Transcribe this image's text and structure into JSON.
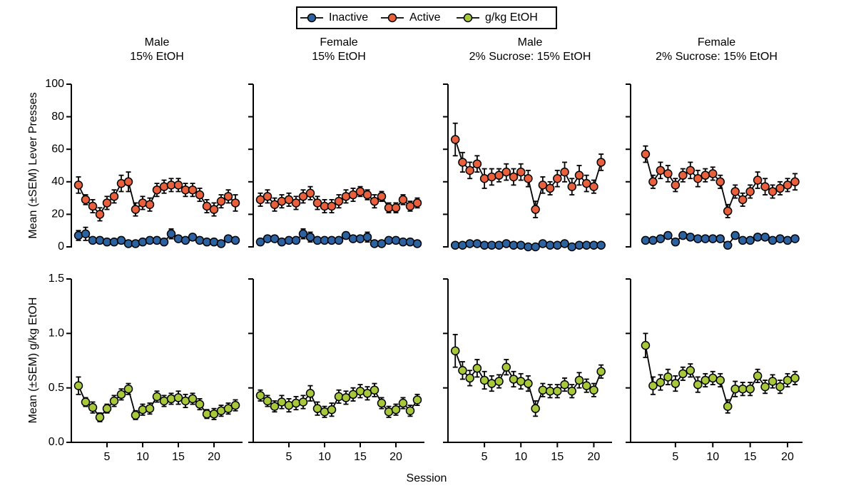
{
  "chart_data": [
    {
      "type": "line",
      "title": "Male",
      "subtitle": "15% EtOH",
      "ylabel": "Mean (±SEM) Lever Presses",
      "x": [
        1,
        2,
        3,
        4,
        5,
        6,
        7,
        8,
        9,
        10,
        11,
        12,
        13,
        14,
        15,
        16,
        17,
        18,
        19,
        20,
        21,
        22,
        23
      ],
      "xlim": [
        0,
        24
      ],
      "ylim": [
        0,
        100
      ],
      "yticks": [
        0,
        20,
        40,
        60,
        80,
        100
      ],
      "series": [
        {
          "name": "Inactive",
          "color": "#2c62a0",
          "values": [
            7,
            8,
            4,
            4,
            3,
            3,
            4,
            2,
            2,
            3,
            4,
            4,
            3,
            8,
            5,
            4,
            6,
            4,
            3,
            3,
            2,
            5,
            4
          ],
          "errors": [
            3,
            4,
            2,
            2,
            2,
            2,
            2,
            2,
            2,
            2,
            2,
            2,
            2,
            3,
            2,
            2,
            2,
            2,
            2,
            2,
            2,
            2,
            2
          ]
        },
        {
          "name": "Active",
          "color": "#e8603c",
          "values": [
            38,
            29,
            25,
            20,
            27,
            31,
            39,
            40,
            23,
            27,
            26,
            35,
            37,
            38,
            38,
            35,
            35,
            32,
            25,
            23,
            28,
            31,
            27
          ],
          "errors": [
            5,
            3,
            4,
            4,
            4,
            4,
            5,
            6,
            4,
            4,
            4,
            4,
            4,
            4,
            4,
            4,
            4,
            4,
            4,
            4,
            4,
            4,
            5
          ]
        }
      ]
    },
    {
      "type": "line",
      "title": "Female",
      "subtitle": "15% EtOH",
      "x": [
        1,
        2,
        3,
        4,
        5,
        6,
        7,
        8,
        9,
        10,
        11,
        12,
        13,
        14,
        15,
        16,
        17,
        18,
        19,
        20,
        21,
        22,
        23
      ],
      "xlim": [
        0,
        24
      ],
      "ylim": [
        0,
        100
      ],
      "series": [
        {
          "color": "#2c62a0",
          "values": [
            3,
            5,
            5,
            3,
            4,
            4,
            8,
            6,
            4,
            4,
            4,
            4,
            7,
            5,
            5,
            6,
            2,
            2,
            4,
            4,
            3,
            3,
            2
          ],
          "errors": [
            2,
            2,
            2,
            2,
            2,
            2,
            3,
            3,
            2,
            2,
            2,
            2,
            2,
            2,
            2,
            3,
            2,
            2,
            2,
            2,
            2,
            2,
            2
          ]
        },
        {
          "color": "#e8603c",
          "values": [
            29,
            31,
            26,
            28,
            29,
            27,
            31,
            33,
            27,
            25,
            25,
            28,
            31,
            32,
            34,
            32,
            28,
            31,
            24,
            24,
            29,
            25,
            27
          ],
          "errors": [
            4,
            4,
            4,
            4,
            4,
            4,
            4,
            4,
            4,
            4,
            4,
            4,
            4,
            4,
            3,
            3,
            4,
            3,
            3,
            3,
            3,
            3,
            3
          ]
        }
      ]
    },
    {
      "type": "line",
      "title": "Male",
      "subtitle": "2% Sucrose: 15% EtOH",
      "x": [
        1,
        2,
        3,
        4,
        5,
        6,
        7,
        8,
        9,
        10,
        11,
        12,
        13,
        14,
        15,
        16,
        17,
        18,
        19,
        20,
        21
      ],
      "xlim": [
        0,
        22.5
      ],
      "ylim": [
        0,
        100
      ],
      "series": [
        {
          "color": "#2c62a0",
          "values": [
            1,
            1,
            2,
            2,
            1,
            1,
            1,
            2,
            1,
            1,
            0,
            0,
            2,
            1,
            1,
            2,
            0,
            1,
            1,
            1,
            1
          ],
          "errors": [
            1,
            1,
            1,
            1,
            1,
            1,
            1,
            1,
            1,
            1,
            1,
            1,
            1,
            1,
            1,
            1,
            1,
            1,
            1,
            1,
            1
          ]
        },
        {
          "color": "#e8603c",
          "values": [
            66,
            52,
            47,
            51,
            42,
            43,
            44,
            46,
            43,
            46,
            42,
            23,
            38,
            36,
            42,
            46,
            37,
            44,
            39,
            37,
            52
          ],
          "errors": [
            10,
            6,
            5,
            5,
            6,
            5,
            4,
            5,
            5,
            5,
            5,
            5,
            5,
            4,
            5,
            6,
            5,
            6,
            5,
            4,
            5
          ]
        }
      ]
    },
    {
      "type": "line",
      "title": "Female",
      "subtitle": "2% Sucrose: 15% EtOH",
      "x": [
        1,
        2,
        3,
        4,
        5,
        6,
        7,
        8,
        9,
        10,
        11,
        12,
        13,
        14,
        15,
        16,
        17,
        18,
        19,
        20,
        21
      ],
      "xlim": [
        -1,
        22
      ],
      "ylim": [
        0,
        100
      ],
      "series": [
        {
          "color": "#2c62a0",
          "values": [
            4,
            4,
            5,
            7,
            3,
            7,
            6,
            5,
            5,
            5,
            5,
            1,
            7,
            4,
            4,
            6,
            6,
            4,
            5,
            4,
            5
          ],
          "errors": [
            2,
            2,
            2,
            2,
            2,
            2,
            2,
            2,
            2,
            2,
            2,
            2,
            2,
            2,
            2,
            2,
            2,
            2,
            2,
            2,
            2
          ]
        },
        {
          "color": "#e8603c",
          "values": [
            57,
            40,
            47,
            45,
            38,
            44,
            47,
            42,
            44,
            45,
            40,
            22,
            34,
            29,
            34,
            41,
            37,
            34,
            36,
            38,
            40
          ],
          "errors": [
            5,
            4,
            5,
            5,
            4,
            4,
            5,
            5,
            4,
            4,
            4,
            4,
            4,
            4,
            4,
            5,
            5,
            4,
            4,
            4,
            5
          ]
        }
      ]
    },
    {
      "type": "line",
      "ylabel": "Mean (±SEM) g/kg EtOH",
      "x": [
        1,
        2,
        3,
        4,
        5,
        6,
        7,
        8,
        9,
        10,
        11,
        12,
        13,
        14,
        15,
        16,
        17,
        18,
        19,
        20,
        21,
        22,
        23
      ],
      "xlim": [
        0,
        24
      ],
      "xticks": [
        5,
        10,
        15,
        20
      ],
      "ylim": [
        0,
        1.5
      ],
      "yticks": [
        {
          "value": 0,
          "label": "0.0"
        },
        0.5,
        {
          "value": 1,
          "label": "1.0"
        },
        1.5
      ],
      "series": [
        {
          "name": "g/kg EtOH",
          "color": "#a8c83c",
          "values": [
            0.52,
            0.37,
            0.32,
            0.23,
            0.31,
            0.38,
            0.44,
            0.49,
            0.25,
            0.3,
            0.31,
            0.42,
            0.38,
            0.4,
            0.41,
            0.38,
            0.4,
            0.35,
            0.26,
            0.26,
            0.29,
            0.31,
            0.34
          ],
          "errors": [
            0.08,
            0.04,
            0.05,
            0.04,
            0.04,
            0.05,
            0.05,
            0.05,
            0.04,
            0.05,
            0.05,
            0.05,
            0.05,
            0.05,
            0.06,
            0.06,
            0.05,
            0.05,
            0.04,
            0.05,
            0.05,
            0.05,
            0.05
          ]
        }
      ]
    },
    {
      "type": "line",
      "xlabel": "Session",
      "x": [
        1,
        2,
        3,
        4,
        5,
        6,
        7,
        8,
        9,
        10,
        11,
        12,
        13,
        14,
        15,
        16,
        17,
        18,
        19,
        20,
        21,
        22,
        23
      ],
      "xlim": [
        0,
        24
      ],
      "xticks": [
        5,
        10,
        15,
        20
      ],
      "ylim": [
        0,
        1.5
      ],
      "series": [
        {
          "color": "#a8c83c",
          "values": [
            0.43,
            0.38,
            0.33,
            0.37,
            0.34,
            0.36,
            0.37,
            0.45,
            0.31,
            0.28,
            0.3,
            0.42,
            0.41,
            0.44,
            0.47,
            0.45,
            0.48,
            0.36,
            0.28,
            0.3,
            0.36,
            0.29,
            0.39
          ],
          "errors": [
            0.05,
            0.05,
            0.05,
            0.06,
            0.06,
            0.06,
            0.06,
            0.07,
            0.06,
            0.05,
            0.06,
            0.06,
            0.06,
            0.06,
            0.06,
            0.06,
            0.06,
            0.05,
            0.05,
            0.05,
            0.05,
            0.05,
            0.05
          ]
        }
      ]
    },
    {
      "type": "line",
      "x": [
        1,
        2,
        3,
        4,
        5,
        6,
        7,
        8,
        9,
        10,
        11,
        12,
        13,
        14,
        15,
        16,
        17,
        18,
        19,
        20,
        21
      ],
      "xlim": [
        0,
        22.5
      ],
      "xticks": [
        5,
        10,
        15,
        20
      ],
      "ylim": [
        0,
        1.5
      ],
      "series": [
        {
          "color": "#a8c83c",
          "values": [
            0.84,
            0.66,
            0.59,
            0.68,
            0.57,
            0.54,
            0.56,
            0.69,
            0.58,
            0.56,
            0.54,
            0.31,
            0.48,
            0.47,
            0.47,
            0.53,
            0.47,
            0.57,
            0.52,
            0.48,
            0.65
          ],
          "errors": [
            0.15,
            0.08,
            0.07,
            0.08,
            0.08,
            0.07,
            0.06,
            0.07,
            0.07,
            0.07,
            0.07,
            0.07,
            0.06,
            0.06,
            0.06,
            0.06,
            0.06,
            0.07,
            0.06,
            0.06,
            0.06
          ]
        }
      ]
    },
    {
      "type": "line",
      "x": [
        1,
        2,
        3,
        4,
        5,
        6,
        7,
        8,
        9,
        10,
        11,
        12,
        13,
        14,
        15,
        16,
        17,
        18,
        19,
        20,
        21
      ],
      "xlim": [
        -1,
        22
      ],
      "xticks": [
        5,
        10,
        15,
        20
      ],
      "ylim": [
        0,
        1.5
      ],
      "series": [
        {
          "color": "#a8c83c",
          "values": [
            0.89,
            0.52,
            0.55,
            0.6,
            0.54,
            0.63,
            0.66,
            0.53,
            0.57,
            0.59,
            0.57,
            0.33,
            0.49,
            0.49,
            0.49,
            0.61,
            0.51,
            0.56,
            0.51,
            0.57,
            0.59
          ],
          "errors": [
            0.11,
            0.08,
            0.07,
            0.07,
            0.07,
            0.06,
            0.06,
            0.07,
            0.06,
            0.06,
            0.06,
            0.06,
            0.07,
            0.06,
            0.06,
            0.06,
            0.06,
            0.06,
            0.06,
            0.06,
            0.06
          ]
        }
      ]
    }
  ]
}
